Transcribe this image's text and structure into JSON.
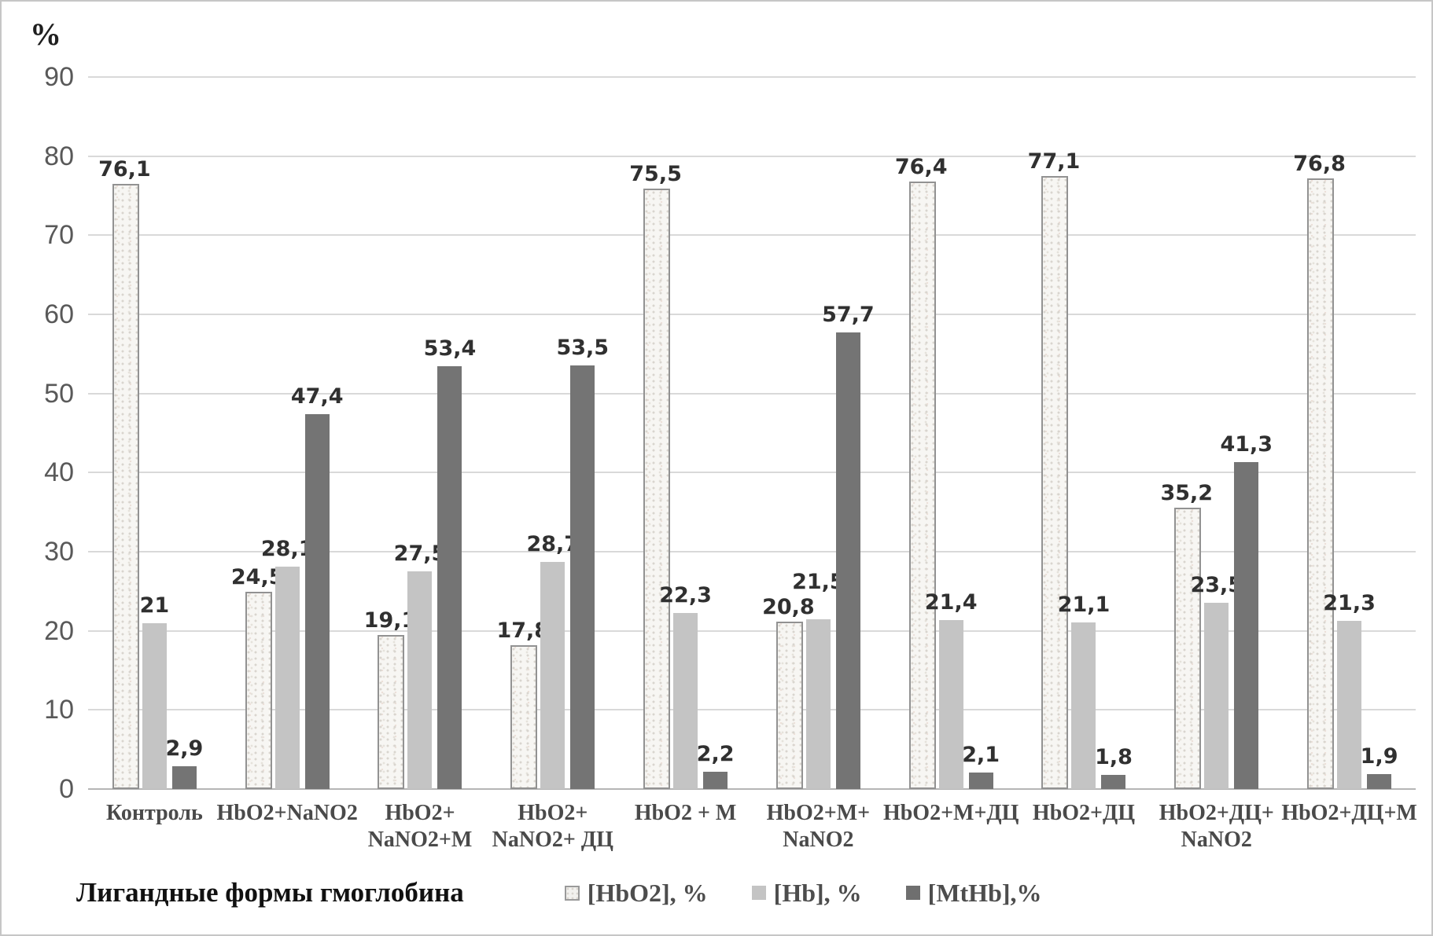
{
  "chart_data": {
    "type": "bar",
    "title": "",
    "y_axis_title": "%",
    "ylim": [
      0,
      90
    ],
    "yticks": [
      0,
      10,
      20,
      30,
      40,
      50,
      60,
      70,
      80,
      90
    ],
    "grid": true,
    "legend_title": "Лигандные формы гмоглобина",
    "legend_position": "bottom",
    "categories": [
      "Контроль",
      "HbO2+NaNO2",
      "HbO2+\nNaNO2+M",
      "HbO2+\nNaNO2+ ДЦ",
      "HbO2 + M",
      "HbO2+M+\nNaNO2",
      "HbO2+M+ДЦ",
      "HbO2+ДЦ",
      "HbO2+ДЦ+\nNaNO2",
      "HbO2+ДЦ+M"
    ],
    "series": [
      {
        "name": "[HbO2], %",
        "style": "speckled",
        "values": [
          76.1,
          24.5,
          19.1,
          17.8,
          75.5,
          20.8,
          76.4,
          77.1,
          35.2,
          76.8
        ],
        "labels": [
          "76,1",
          "24,5",
          "19,1",
          "17,8",
          "75,5",
          "20,8",
          "76,4",
          "77,1",
          "35,2",
          "76,8"
        ]
      },
      {
        "name": "[Hb], %",
        "style": "lightgray",
        "color": "#c4c4c4",
        "values": [
          21,
          28.1,
          27.5,
          28.7,
          22.3,
          21.5,
          21.4,
          21.1,
          23.5,
          21.3
        ],
        "labels": [
          "21",
          "28,1",
          "27,5",
          "28,7",
          "22,3",
          "21,5",
          "21,4",
          "21,1",
          "23,5",
          "21,3"
        ]
      },
      {
        "name": "[MtHb],%",
        "style": "darkgray",
        "color": "#747474",
        "values": [
          2.9,
          47.4,
          53.4,
          53.5,
          2.2,
          57.7,
          2.1,
          1.8,
          41.3,
          1.9
        ],
        "labels": [
          "2,9",
          "47,4",
          "53,4",
          "53,5",
          "2,2",
          "57,7",
          "2,1",
          "1,8",
          "41,3",
          "1,9"
        ]
      }
    ],
    "colors": {
      "speckle_base": "#f7f6f3",
      "speckle_dot": "#d9d5cf",
      "bar_border": "#929292",
      "hb_gray": "#c4c4c4",
      "mthb_gray": "#747474",
      "gridline": "#d9d9d9",
      "axis_line": "#b5b5b5"
    }
  }
}
